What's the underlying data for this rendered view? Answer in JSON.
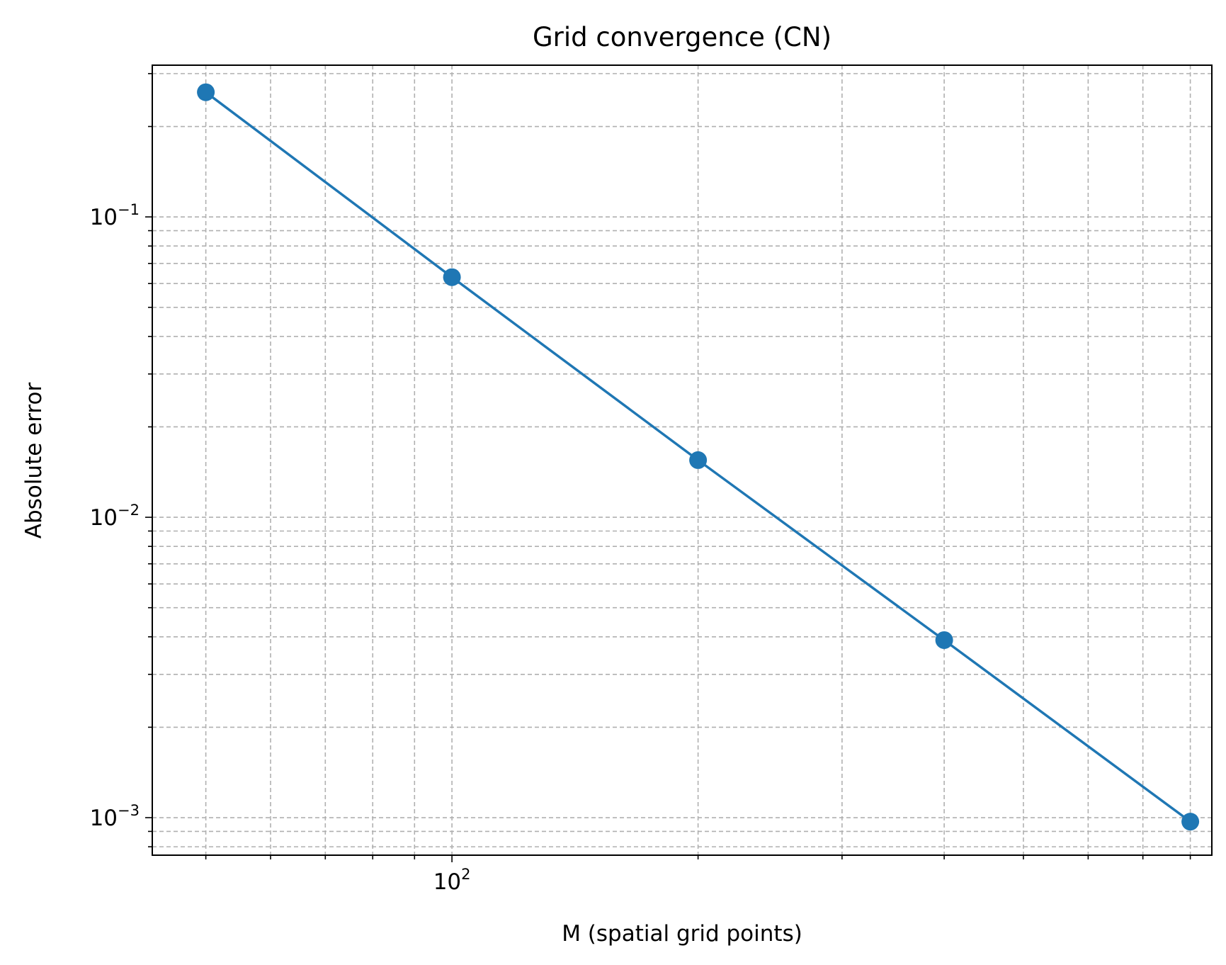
{
  "chart_data": {
    "type": "line",
    "title": "Grid convergence (CN)",
    "xlabel": "M (spatial grid points)",
    "ylabel": "Absolute error",
    "xscale": "log",
    "yscale": "log",
    "xlim": [
      43.0,
      850.0
    ],
    "ylim": [
      0.00075,
      0.32
    ],
    "grid": "major and minor, dashed",
    "x_ticks": [
      {
        "value": 100,
        "base": "10",
        "exp": "2"
      }
    ],
    "y_ticks": [
      {
        "value": 0.001,
        "base": "10",
        "exp": "−3"
      },
      {
        "value": 0.01,
        "base": "10",
        "exp": "−2"
      },
      {
        "value": 0.1,
        "base": "10",
        "exp": "−1"
      }
    ],
    "series": [
      {
        "color": "#1f77b4",
        "marker": "circle",
        "x": [
          50,
          100,
          200,
          400,
          800
        ],
        "y": [
          0.26,
          0.063,
          0.0155,
          0.0039,
          0.00097
        ]
      }
    ]
  }
}
